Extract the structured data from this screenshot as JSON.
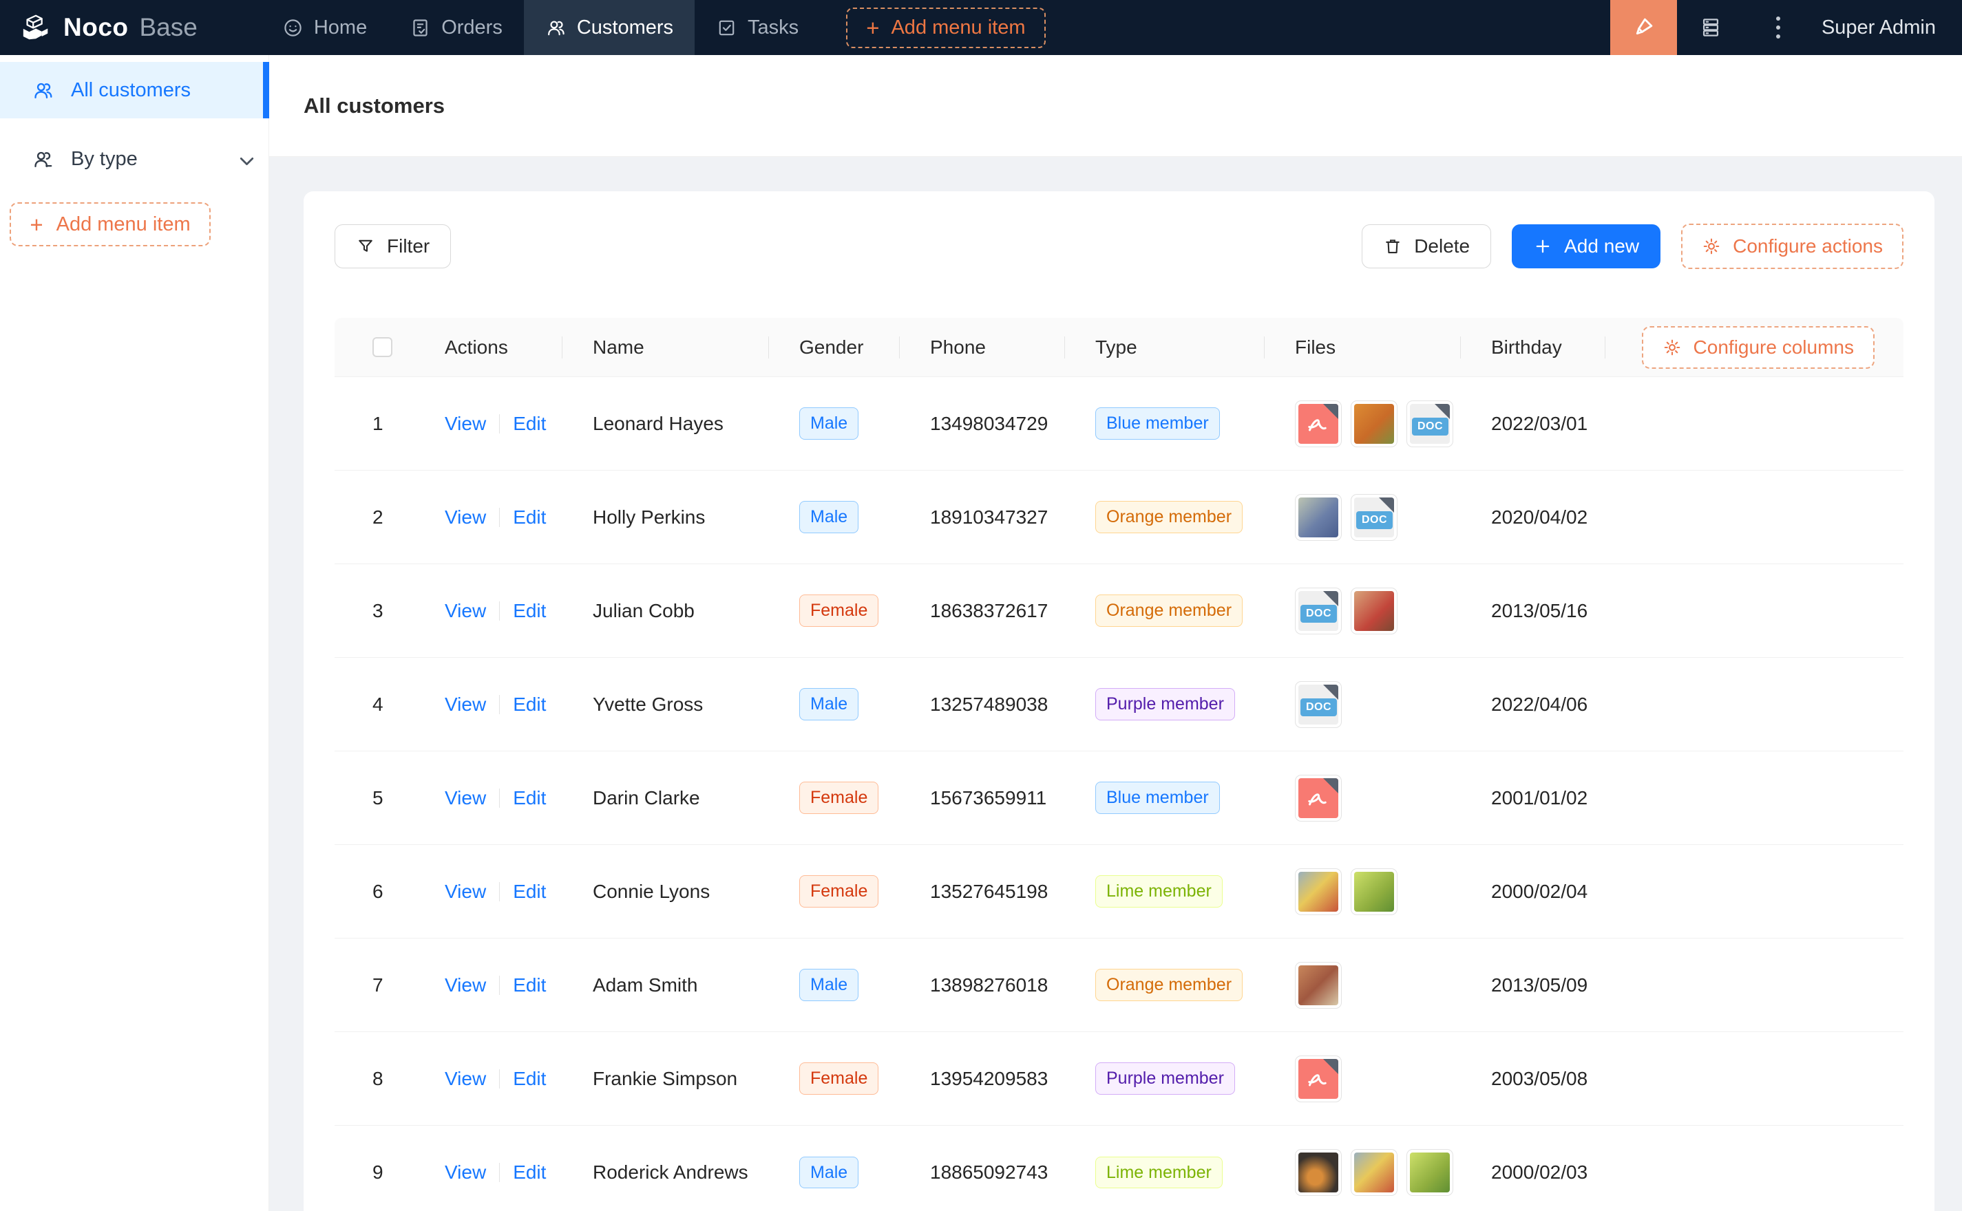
{
  "topnav": {
    "logo": {
      "bold": "Noco",
      "light": "Base"
    },
    "items": [
      {
        "label": "Home",
        "icon": "smile-icon",
        "active": false
      },
      {
        "label": "Orders",
        "icon": "orders-icon",
        "active": false
      },
      {
        "label": "Customers",
        "icon": "customers-icon",
        "active": true
      },
      {
        "label": "Tasks",
        "icon": "tasks-icon",
        "active": false
      }
    ],
    "add_menu_item_label": "Add menu item",
    "plus_glyph": "+",
    "user": "Super Admin"
  },
  "sidebar": {
    "items": [
      {
        "label": "All customers",
        "icon": "users-icon",
        "active": true
      },
      {
        "label": "By type",
        "icon": "users-type-icon",
        "active": false
      }
    ],
    "add_menu_item_label": "Add menu item",
    "plus_glyph": "+"
  },
  "page": {
    "title": "All customers"
  },
  "toolbar": {
    "filter_label": "Filter",
    "delete_label": "Delete",
    "add_new_label": "Add new",
    "configure_actions_label": "Configure actions"
  },
  "table": {
    "columns": [
      "Actions",
      "Name",
      "Gender",
      "Phone",
      "Type",
      "Files",
      "Birthday"
    ],
    "configure_columns_label": "Configure columns",
    "view_label": "View",
    "edit_label": "Edit",
    "rows": [
      {
        "index": 1,
        "name": "Leonard Hayes",
        "gender": "Male",
        "phone": "13498034729",
        "type": "Blue member",
        "type_color": "blue",
        "birthday": "2022/03/01",
        "files": [
          "pdf",
          "img-oranges",
          "doc"
        ]
      },
      {
        "index": 2,
        "name": "Holly Perkins",
        "gender": "Male",
        "phone": "18910347327",
        "type": "Orange member",
        "type_color": "orange",
        "birthday": "2020/04/02",
        "files": [
          "img-grapes-blue",
          "doc"
        ]
      },
      {
        "index": 3,
        "name": "Julian Cobb",
        "gender": "Female",
        "phone": "18638372617",
        "type": "Orange member",
        "type_color": "orange",
        "birthday": "2013/05/16",
        "files": [
          "doc",
          "img-food-red"
        ]
      },
      {
        "index": 4,
        "name": "Yvette Gross",
        "gender": "Male",
        "phone": "13257489038",
        "type": "Purple member",
        "type_color": "purple",
        "birthday": "2022/04/06",
        "files": [
          "doc"
        ]
      },
      {
        "index": 5,
        "name": "Darin Clarke",
        "gender": "Female",
        "phone": "15673659911",
        "type": "Blue member",
        "type_color": "blue",
        "birthday": "2001/01/02",
        "files": [
          "pdf"
        ]
      },
      {
        "index": 6,
        "name": "Connie Lyons",
        "gender": "Female",
        "phone": "13527645198",
        "type": "Lime member",
        "type_color": "lime",
        "birthday": "2000/02/04",
        "files": [
          "img-fruit-table",
          "img-grapes-green"
        ]
      },
      {
        "index": 7,
        "name": "Adam Smith",
        "gender": "Male",
        "phone": "13898276018",
        "type": "Orange member",
        "type_color": "orange",
        "birthday": "2013/05/09",
        "files": [
          "img-food-collage"
        ]
      },
      {
        "index": 8,
        "name": "Frankie Simpson",
        "gender": "Female",
        "phone": "13954209583",
        "type": "Purple member",
        "type_color": "purple",
        "birthday": "2003/05/08",
        "files": [
          "pdf"
        ]
      },
      {
        "index": 9,
        "name": "Roderick Andrews",
        "gender": "Male",
        "phone": "18865092743",
        "type": "Lime member",
        "type_color": "lime",
        "birthday": "2000/02/03",
        "files": [
          "img-fruit-dark",
          "img-fruit-table",
          "img-grapes-green"
        ]
      }
    ]
  },
  "files_labels": {
    "doc": "DOC"
  },
  "gender_tag_colors": {
    "Male": "blue",
    "Female": "volcano"
  },
  "colors": {
    "nav_background": "#0d1b2e",
    "accent_orange": "#ee7743",
    "primary_blue": "#1677ff",
    "sidebar_active_bg": "#e6f4ff"
  }
}
